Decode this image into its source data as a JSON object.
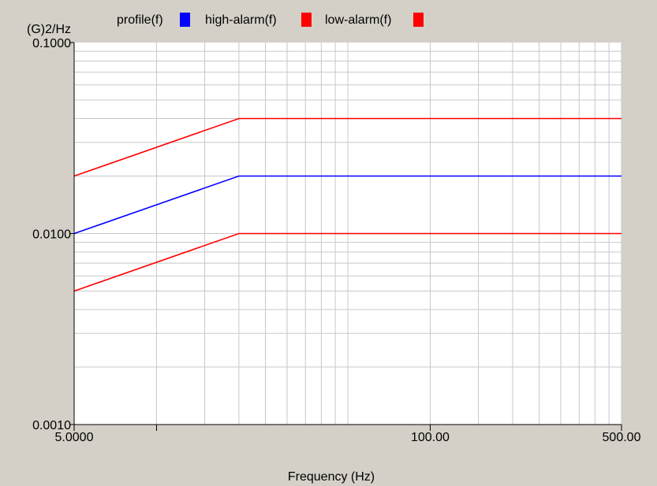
{
  "chart_data": {
    "type": "line",
    "xscale": "log",
    "yscale": "log",
    "ylabel": "(G)2/Hz",
    "xlabel": "Frequency (Hz)",
    "xlim": [
      5,
      500
    ],
    "ylim": [
      0.001,
      0.1
    ],
    "xtick_labels": [
      {
        "value": 5,
        "label": "5.0000"
      },
      {
        "value": 100,
        "label": "100.00"
      },
      {
        "value": 500,
        "label": "500.00"
      }
    ],
    "ytick_labels": [
      {
        "value": 0.1,
        "label": "0.1000"
      },
      {
        "value": 0.01,
        "label": "0.0100"
      },
      {
        "value": 0.001,
        "label": "0.0010"
      }
    ],
    "grid": true,
    "legend": "top",
    "series": [
      {
        "name": "profile(f)",
        "color": "#0000ff",
        "x": [
          5,
          20,
          500
        ],
        "y": [
          0.01,
          0.02,
          0.02
        ]
      },
      {
        "name": "high-alarm(f)",
        "color": "#ff0000",
        "x": [
          5,
          20,
          500
        ],
        "y": [
          0.02,
          0.04,
          0.04
        ]
      },
      {
        "name": "low-alarm(f)",
        "color": "#ff0000",
        "x": [
          5,
          20,
          500
        ],
        "y": [
          0.005,
          0.01,
          0.01
        ]
      }
    ]
  }
}
